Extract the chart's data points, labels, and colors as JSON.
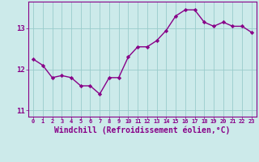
{
  "x": [
    0,
    1,
    2,
    3,
    4,
    5,
    6,
    7,
    8,
    9,
    10,
    11,
    12,
    13,
    14,
    15,
    16,
    17,
    18,
    19,
    20,
    21,
    22,
    23
  ],
  "y": [
    12.25,
    12.1,
    11.8,
    11.85,
    11.8,
    11.6,
    11.6,
    11.4,
    11.8,
    11.8,
    12.3,
    12.55,
    12.55,
    12.7,
    12.95,
    13.3,
    13.45,
    13.45,
    13.15,
    13.05,
    13.15,
    13.05,
    13.05,
    12.9
  ],
  "line_color": "#880088",
  "marker": "D",
  "marker_size": 2.2,
  "line_width": 1.0,
  "xlabel": "Windchill (Refroidissement éolien,°C)",
  "xlabel_fontsize": 7,
  "xtick_labels": [
    "0",
    "1",
    "2",
    "3",
    "4",
    "5",
    "6",
    "7",
    "8",
    "9",
    "10",
    "11",
    "12",
    "13",
    "14",
    "15",
    "16",
    "17",
    "18",
    "19",
    "20",
    "21",
    "22",
    "23"
  ],
  "ytick_vals": [
    11,
    12,
    13
  ],
  "ytick_labels": [
    "11",
    "12",
    "13"
  ],
  "ylim": [
    10.85,
    13.65
  ],
  "xlim": [
    -0.5,
    23.5
  ],
  "background_color": "#cceaea",
  "grid_color": "#99cccc",
  "tick_color": "#880088",
  "tick_label_color": "#880088",
  "xlabel_color": "#880088"
}
